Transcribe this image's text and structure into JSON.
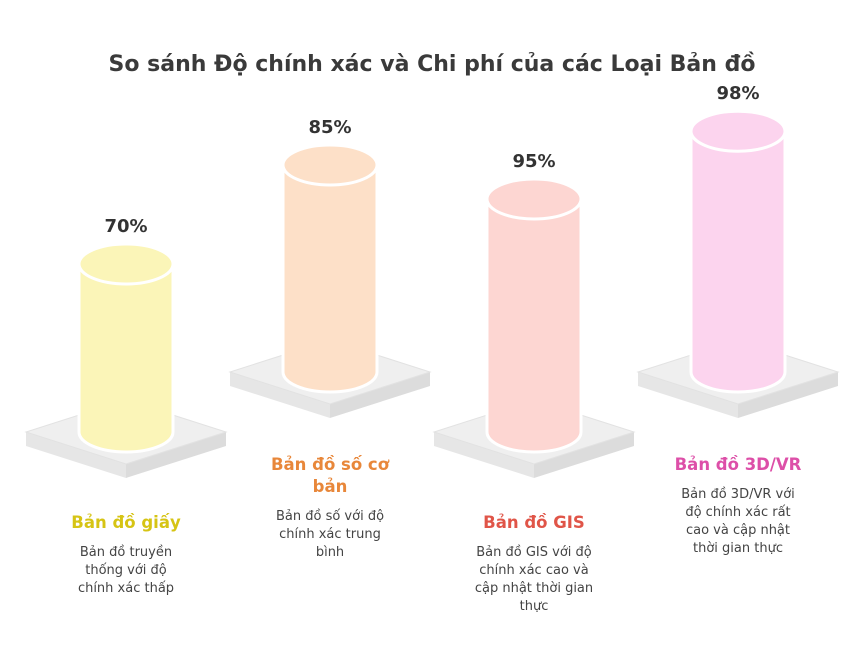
{
  "title": "So sánh Độ chính xác và Chi phí của các Loại Bản đồ",
  "chart_data": {
    "type": "bar",
    "title": "So sánh Độ chính xác và Chi phí của các Loại Bản đồ",
    "categories": [
      "Bản đồ giấy",
      "Bản đồ số cơ bản",
      "Bản đồ GIS",
      "Bản đồ 3D/VR"
    ],
    "values": [
      70,
      85,
      95,
      98
    ],
    "value_labels": [
      "70%",
      "85%",
      "95%",
      "98%"
    ],
    "descriptions": [
      "Bản đồ truyền thống với độ chính xác thấp",
      "Bản đồ số với độ chính xác trung bình",
      "Bản đồ GIS với độ chính xác cao và cập nhật thời gian thực",
      "Bản đồ 3D/VR với độ chính xác rất cao và cập nhật thời gian thực"
    ],
    "colors": [
      "#fbf5b8",
      "#fde0c8",
      "#fdd6d2",
      "#fcd4ee"
    ],
    "title_colors": [
      "#d6c414",
      "#e8873a",
      "#e05548",
      "#dd4fa8"
    ],
    "legend": "none",
    "grid": false
  }
}
